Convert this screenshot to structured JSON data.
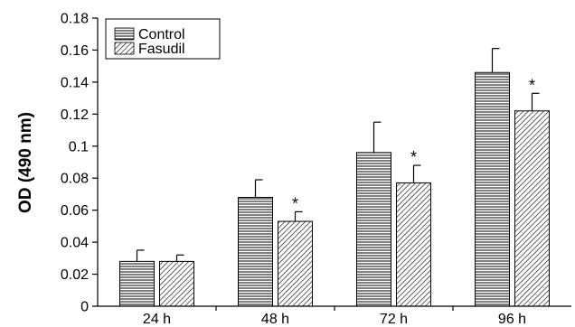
{
  "chart_data": {
    "type": "bar",
    "categories": [
      "24 h",
      "48 h",
      "72 h",
      "96 h"
    ],
    "series": [
      {
        "name": "Control",
        "pattern": "horizontal-lines",
        "values": [
          0.028,
          0.068,
          0.096,
          0.146
        ],
        "error": [
          0.007,
          0.011,
          0.019,
          0.015
        ],
        "significance": [
          "",
          "",
          "",
          ""
        ]
      },
      {
        "name": "Fasudil",
        "pattern": "diagonal-lines",
        "values": [
          0.028,
          0.053,
          0.077,
          0.122
        ],
        "error": [
          0.004,
          0.006,
          0.011,
          0.011
        ],
        "significance": [
          "",
          "*",
          "*",
          "*"
        ]
      }
    ],
    "ylabel": "OD (490 nm)",
    "xlabel": "",
    "ylim": [
      0,
      0.18
    ],
    "yticks": [
      "0",
      "0.02",
      "0.04",
      "0.06",
      "0.08",
      "0.1",
      "0.12",
      "0.14",
      "0.16",
      "0.18"
    ],
    "grid": false,
    "legend_position": "top-left",
    "colors": {
      "bar_stroke": "#000000",
      "bar_fill": "#ffffff",
      "pattern": "#000000"
    }
  }
}
